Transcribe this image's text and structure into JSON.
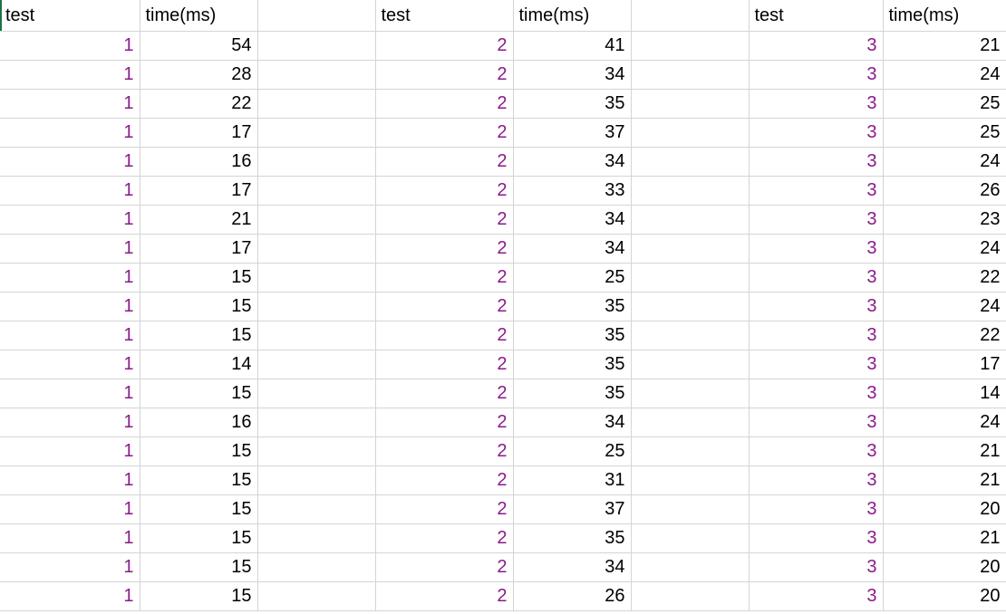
{
  "headers": [
    "test",
    "time(ms)",
    "",
    "test",
    "time(ms)",
    "",
    "test",
    "time(ms)"
  ],
  "colors": {
    "test_id_text": "#8b1a8b",
    "gridline": "#d4d4d4",
    "selection": "#1e7145"
  },
  "rows": [
    [
      "1",
      "54",
      "",
      "2",
      "41",
      "",
      "3",
      "21"
    ],
    [
      "1",
      "28",
      "",
      "2",
      "34",
      "",
      "3",
      "24"
    ],
    [
      "1",
      "22",
      "",
      "2",
      "35",
      "",
      "3",
      "25"
    ],
    [
      "1",
      "17",
      "",
      "2",
      "37",
      "",
      "3",
      "25"
    ],
    [
      "1",
      "16",
      "",
      "2",
      "34",
      "",
      "3",
      "24"
    ],
    [
      "1",
      "17",
      "",
      "2",
      "33",
      "",
      "3",
      "26"
    ],
    [
      "1",
      "21",
      "",
      "2",
      "34",
      "",
      "3",
      "23"
    ],
    [
      "1",
      "17",
      "",
      "2",
      "34",
      "",
      "3",
      "24"
    ],
    [
      "1",
      "15",
      "",
      "2",
      "25",
      "",
      "3",
      "22"
    ],
    [
      "1",
      "15",
      "",
      "2",
      "35",
      "",
      "3",
      "24"
    ],
    [
      "1",
      "15",
      "",
      "2",
      "35",
      "",
      "3",
      "22"
    ],
    [
      "1",
      "14",
      "",
      "2",
      "35",
      "",
      "3",
      "17"
    ],
    [
      "1",
      "15",
      "",
      "2",
      "35",
      "",
      "3",
      "14"
    ],
    [
      "1",
      "16",
      "",
      "2",
      "34",
      "",
      "3",
      "24"
    ],
    [
      "1",
      "15",
      "",
      "2",
      "25",
      "",
      "3",
      "21"
    ],
    [
      "1",
      "15",
      "",
      "2",
      "31",
      "",
      "3",
      "21"
    ],
    [
      "1",
      "15",
      "",
      "2",
      "37",
      "",
      "3",
      "20"
    ],
    [
      "1",
      "15",
      "",
      "2",
      "35",
      "",
      "3",
      "21"
    ],
    [
      "1",
      "15",
      "",
      "2",
      "34",
      "",
      "3",
      "20"
    ],
    [
      "1",
      "15",
      "",
      "2",
      "26",
      "",
      "3",
      "20"
    ]
  ]
}
